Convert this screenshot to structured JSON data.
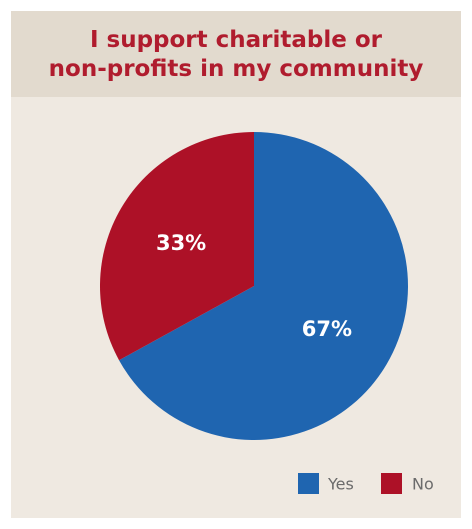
{
  "chart_data": {
    "type": "pie",
    "title_lines": [
      "I support charitable or",
      "non-profits in my community"
    ],
    "categories": [
      "Yes",
      "No"
    ],
    "values": [
      67,
      33
    ],
    "data_labels": [
      "67%",
      "33%"
    ],
    "colors": [
      "#1f65b0",
      "#ad1127"
    ],
    "legend": {
      "position": "bottom-right",
      "entries": [
        "Yes",
        "No"
      ]
    }
  }
}
